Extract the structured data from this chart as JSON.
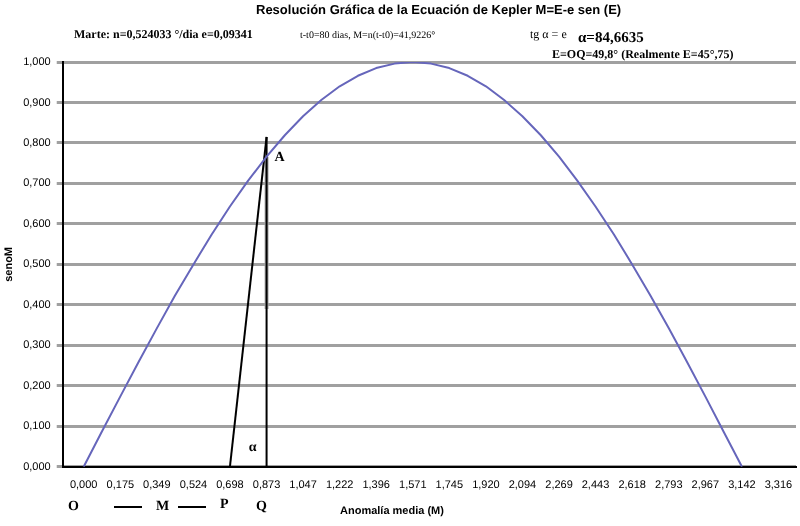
{
  "chart_data": {
    "type": "line",
    "title": "Resolución Gráfica de la Ecuación de Kepler  M=E-e sen (E)",
    "xlabel": "Anomalía media (M)",
    "ylabel": "senoM",
    "annotations": [
      "Marte: n=0,524033 °/dia e=0,09341",
      "t-t0=80 dias, M=n(t-t0)=41,9226°",
      "tg α = e",
      "α=84,6635",
      "E=OQ=49,8° (Realmente E=45°,75)",
      "O",
      "M",
      "P",
      "Q",
      {
        "text": "A",
        "x": 0.873,
        "y": 0.766
      },
      {
        "text": "α",
        "x": 0.75,
        "y": 0.05
      }
    ],
    "series": [
      {
        "color": "#6666bb",
        "x": [
          0,
          0.087,
          0.175,
          0.262,
          0.349,
          0.436,
          0.524,
          0.611,
          0.698,
          0.785,
          0.873,
          0.96,
          1.047,
          1.134,
          1.222,
          1.309,
          1.396,
          1.484,
          1.571,
          1.658,
          1.745,
          1.833,
          1.92,
          2.007,
          2.094,
          2.182,
          2.269,
          2.356,
          2.443,
          2.531,
          2.618,
          2.705,
          2.793,
          2.88,
          2.967,
          3.054,
          3.142
        ],
        "values": [
          0,
          0.087,
          0.174,
          0.259,
          0.342,
          0.423,
          0.5,
          0.574,
          0.643,
          0.707,
          0.766,
          0.819,
          0.866,
          0.906,
          0.94,
          0.966,
          0.985,
          0.996,
          1,
          0.996,
          0.985,
          0.966,
          0.94,
          0.906,
          0.866,
          0.819,
          0.766,
          0.707,
          0.643,
          0.574,
          0.5,
          0.423,
          0.342,
          0.259,
          0.174,
          0.087,
          0
        ]
      },
      {
        "color": "#000000",
        "x": [
          0.698,
          0.873
        ],
        "values": [
          0,
          0.815
        ]
      },
      {
        "color": "#000000",
        "x": [
          0.873,
          0.873
        ],
        "values": [
          0,
          0.815
        ]
      },
      {
        "color": "#aaaaaa",
        "x": [
          0.873,
          0.873
        ],
        "values": [
          0.39,
          0.766
        ]
      }
    ],
    "xlim": [
      -0.1,
      3.4
    ],
    "xticks": [
      {
        "value": 0,
        "label": "0,000"
      },
      {
        "value": 0.175,
        "label": "0,175"
      },
      {
        "value": 0.349,
        "label": "0,349"
      },
      {
        "value": 0.524,
        "label": "0,524"
      },
      {
        "value": 0.698,
        "label": "0,698"
      },
      {
        "value": 0.873,
        "label": "0,873"
      },
      {
        "value": 1.047,
        "label": "1,047"
      },
      {
        "value": 1.222,
        "label": "1,222"
      },
      {
        "value": 1.396,
        "label": "1,396"
      },
      {
        "value": 1.571,
        "label": "1,571"
      },
      {
        "value": 1.745,
        "label": "1,745"
      },
      {
        "value": 1.92,
        "label": "1,920"
      },
      {
        "value": 2.094,
        "label": "2,094"
      },
      {
        "value": 2.269,
        "label": "2,269"
      },
      {
        "value": 2.443,
        "label": "2,443"
      },
      {
        "value": 2.618,
        "label": "2,618"
      },
      {
        "value": 2.793,
        "label": "2,793"
      },
      {
        "value": 2.967,
        "label": "2,967"
      },
      {
        "value": 3.142,
        "label": "3,142"
      },
      {
        "value": 3.316,
        "label": "3,316"
      }
    ],
    "ylim": [
      0,
      1
    ],
    "yticks": [
      {
        "value": 0,
        "label": "0,000"
      },
      {
        "value": 0.1,
        "label": "0,100"
      },
      {
        "value": 0.2,
        "label": "0,200"
      },
      {
        "value": 0.3,
        "label": "0,300"
      },
      {
        "value": 0.4,
        "label": "0,400"
      },
      {
        "value": 0.5,
        "label": "0,500"
      },
      {
        "value": 0.6,
        "label": "0,600"
      },
      {
        "value": 0.7,
        "label": "0,700"
      },
      {
        "value": 0.8,
        "label": "0,800"
      },
      {
        "value": 0.9,
        "label": "0,900"
      },
      {
        "value": 1,
        "label": "1,000"
      }
    ],
    "grid": "y",
    "legend": false,
    "marker": "none",
    "line_style": "solid"
  }
}
